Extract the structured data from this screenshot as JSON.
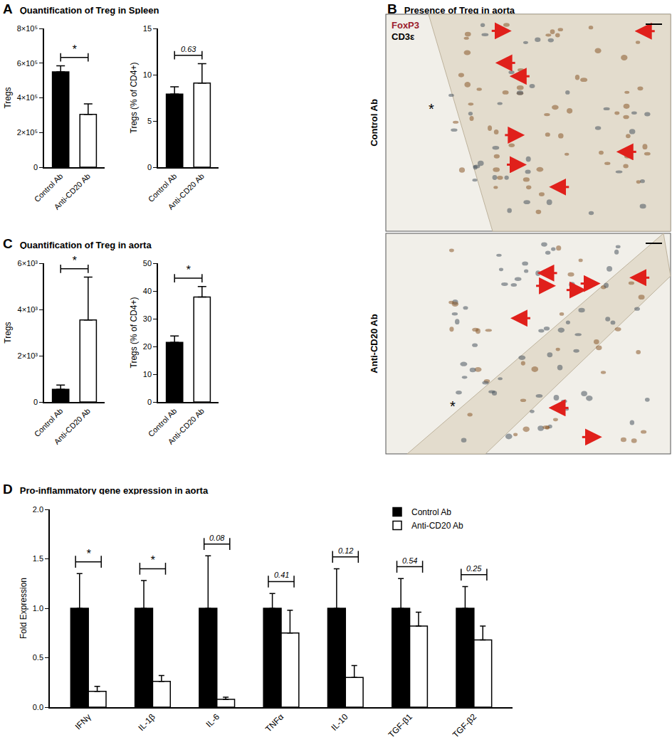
{
  "panels": [
    {
      "label": "A",
      "title": "Quantification of Treg in Spleen"
    },
    {
      "label": "B",
      "title": "Presence of Treg in aorta",
      "stains": [
        {
          "text": "FoxP3",
          "color": "#9b1c2c"
        },
        {
          "text": "CD3ε",
          "color": "#000000"
        }
      ],
      "rows": [
        {
          "label": "Control Ab",
          "mark": "*"
        },
        {
          "label": "Anti-CD20 Ab",
          "mark": "*"
        }
      ]
    },
    {
      "label": "C",
      "title": "Quantification of Treg in aorta"
    },
    {
      "label": "D",
      "title": "Pro-inflammatory gene expression in aorta"
    }
  ],
  "chart_data": [
    {
      "panel": "A",
      "type": "bar",
      "categories": [
        "Control Ab",
        "Anti-CD20 Ab"
      ],
      "values": [
        550000,
        305000
      ],
      "errors": [
        35000,
        60000
      ],
      "colors": [
        "#000000",
        "#ffffff"
      ],
      "y_label": "Tregs",
      "ylim": [
        0,
        800000
      ],
      "yticks": [
        0,
        {
          "value": 200000,
          "label": "2×10⁵"
        },
        {
          "value": 400000,
          "label": "4×10⁵"
        },
        {
          "value": 600000,
          "label": "6×10⁵"
        },
        {
          "value": 800000,
          "label": "8×10⁵"
        }
      ],
      "annotation": "*"
    },
    {
      "panel": "A",
      "type": "bar",
      "categories": [
        "Control Ab",
        "Anti-CD20 Ab"
      ],
      "values": [
        7.9,
        9.1
      ],
      "errors": [
        0.8,
        2.1
      ],
      "colors": [
        "#000000",
        "#ffffff"
      ],
      "y_label": "Tregs (% of CD4+)",
      "ylim": [
        0,
        15
      ],
      "yticks": [
        0,
        5,
        10,
        15
      ],
      "annotation": "0.63"
    },
    {
      "panel": "C",
      "type": "bar",
      "categories": [
        "Control Ab",
        "Anti-CD20 Ab"
      ],
      "values": [
        550,
        3550
      ],
      "errors": [
        180,
        1850
      ],
      "colors": [
        "#000000",
        "#ffffff"
      ],
      "y_label": "Tregs",
      "ylim": [
        0,
        6000
      ],
      "yticks": [
        0,
        {
          "value": 2000,
          "label": "2×10³"
        },
        {
          "value": 4000,
          "label": "4×10³"
        },
        {
          "value": 6000,
          "label": "6×10³"
        }
      ],
      "annotation": "*"
    },
    {
      "panel": "C",
      "type": "bar",
      "categories": [
        "Control Ab",
        "Anti-CD20 Ab"
      ],
      "values": [
        21.5,
        37.8
      ],
      "errors": [
        2.3,
        3.8
      ],
      "colors": [
        "#000000",
        "#ffffff"
      ],
      "y_label": "Tregs (% of CD4+)",
      "ylim": [
        0,
        50
      ],
      "yticks": [
        0,
        10,
        20,
        30,
        40,
        50
      ],
      "annotation": "*"
    },
    {
      "panel": "D",
      "type": "bar",
      "categories": [
        "IFNγ",
        "IL-1β",
        "IL-6",
        "TNFα",
        "IL-10",
        "TGF-β1",
        "TGF-β2"
      ],
      "series": [
        {
          "name": "Control Ab",
          "color": "#000000",
          "values": [
            1.0,
            1.0,
            1.0,
            1.0,
            1.0,
            1.0,
            1.0
          ],
          "errors": [
            0.35,
            0.28,
            0.53,
            0.15,
            0.4,
            0.3,
            0.22
          ]
        },
        {
          "name": "Anti-CD20 Ab",
          "color": "#ffffff",
          "values": [
            0.16,
            0.26,
            0.08,
            0.75,
            0.3,
            0.82,
            0.68
          ],
          "errors": [
            0.05,
            0.06,
            0.02,
            0.23,
            0.12,
            0.14,
            0.14
          ]
        }
      ],
      "y_label": "Fold Expression",
      "ylim": [
        0,
        2
      ],
      "yticks": [
        {
          "value": 0,
          "label": "0.0"
        },
        0.5,
        {
          "value": 1,
          "label": "1.0"
        },
        1.5,
        {
          "value": 2,
          "label": "2.0"
        }
      ],
      "annotations": [
        "*",
        "*",
        "0.08",
        "0.41",
        "0.12",
        "0.54",
        "0.25"
      ],
      "legend": "top right"
    }
  ]
}
